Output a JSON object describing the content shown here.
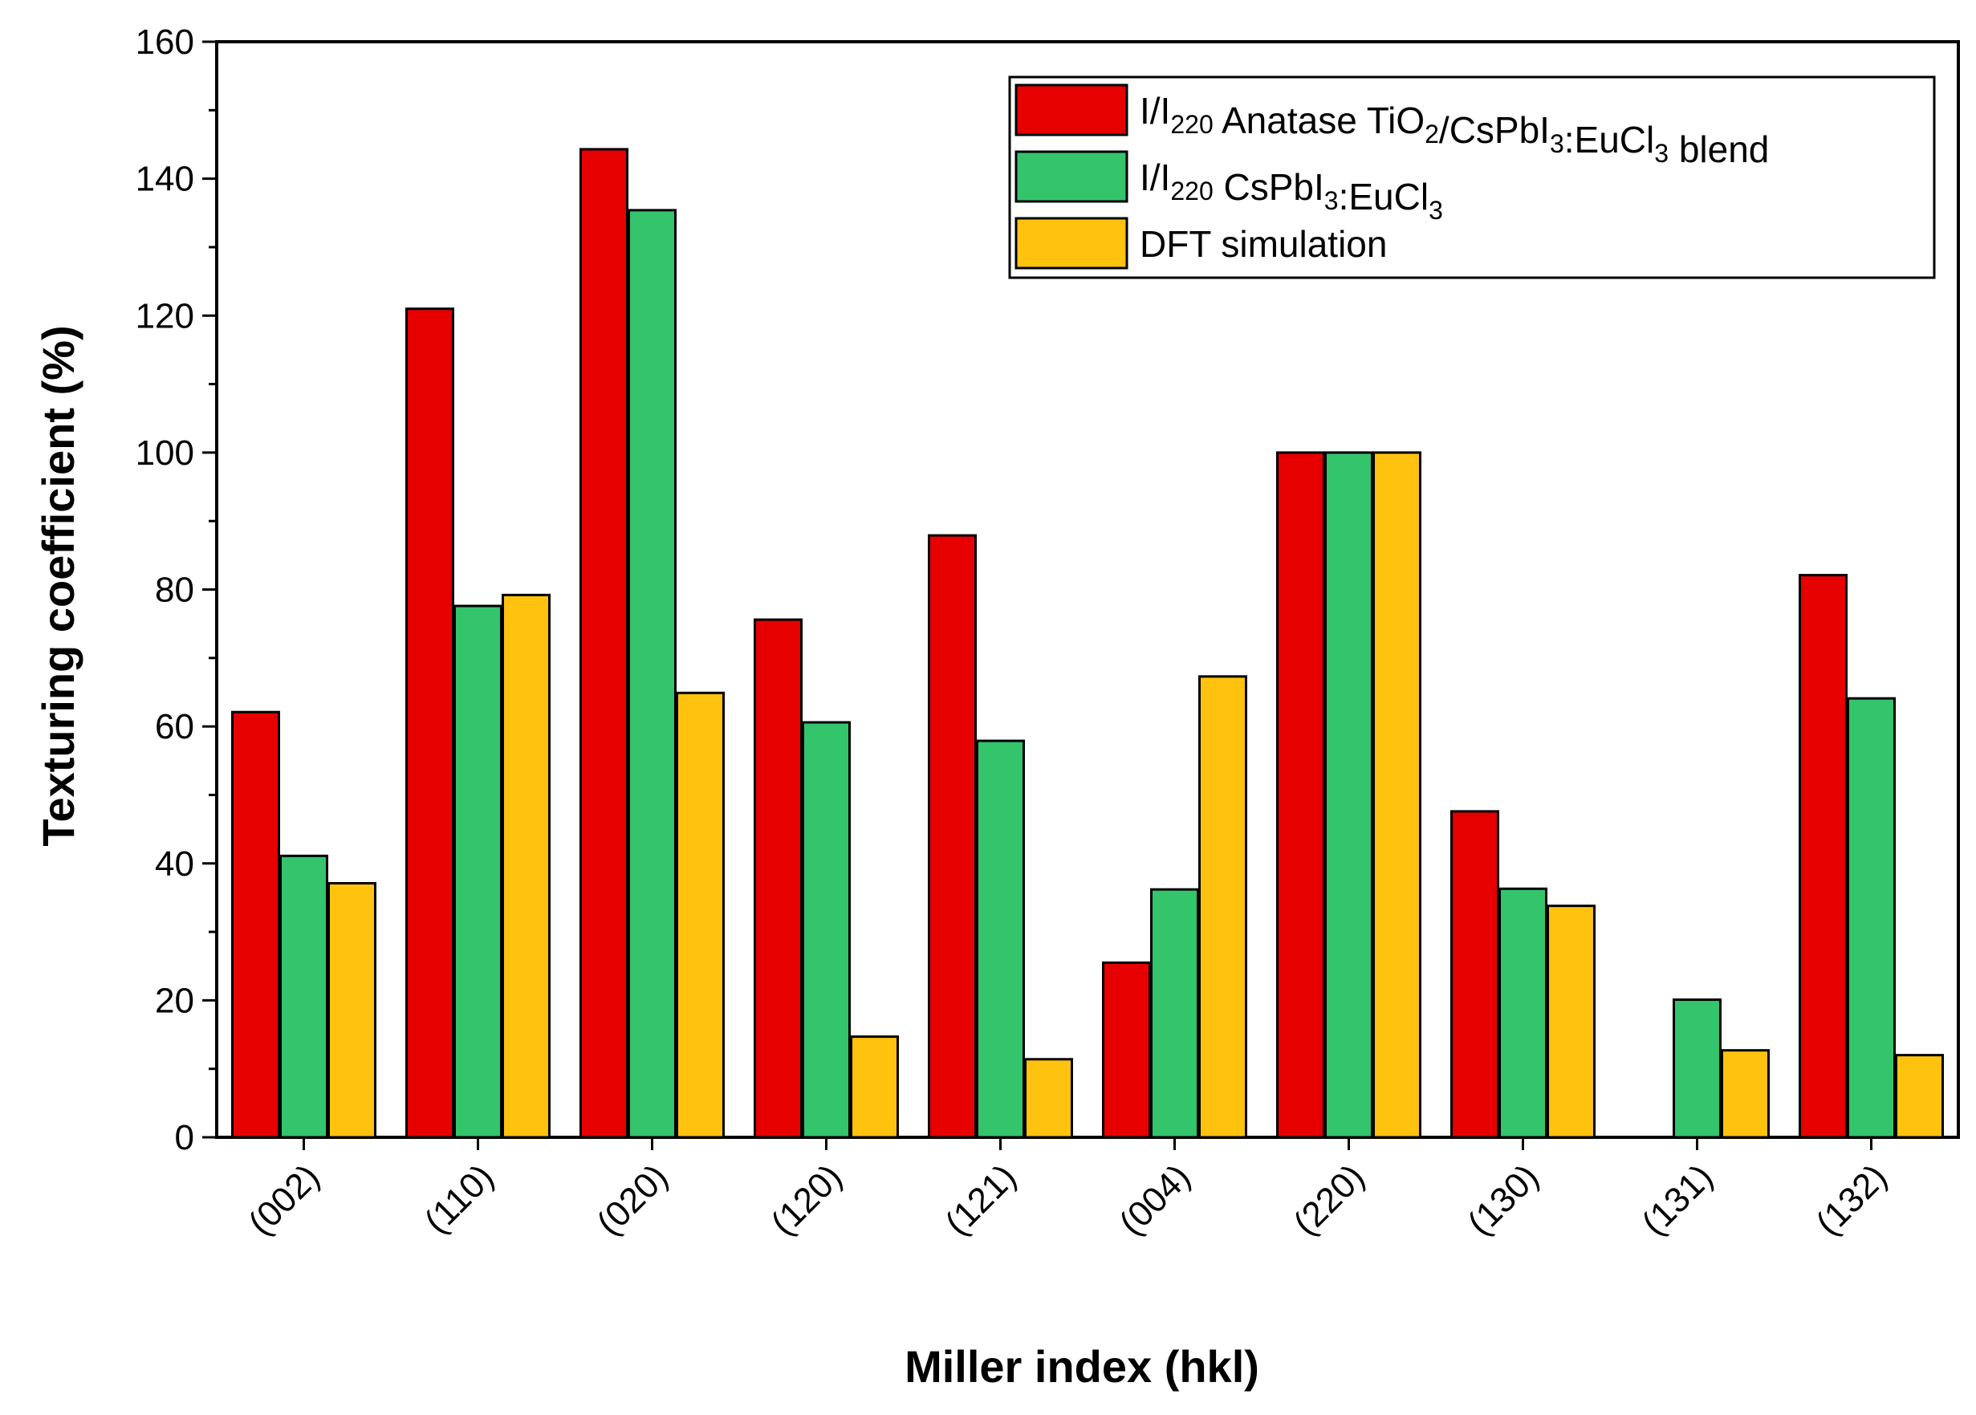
{
  "chart_data": {
    "type": "bar",
    "title": "",
    "xlabel": "Miller index (hkl)",
    "ylabel": "Texturing coefficient (%)",
    "ylim": [
      0,
      160
    ],
    "yticks": [
      0,
      20,
      40,
      60,
      80,
      100,
      120,
      140,
      160
    ],
    "categories": [
      "(002)",
      "(110)",
      "(020)",
      "(120)",
      "(121)",
      "(004)",
      "(220)",
      "(130)",
      "(131)",
      "(132)"
    ],
    "series": [
      {
        "name": "I/I220 Anatase TiO2/CsPbI3:EuCl3 blend",
        "color": "#e60000",
        "values": [
          62.1,
          121.0,
          144.3,
          75.6,
          87.9,
          25.5,
          100.0,
          47.6,
          0,
          82.1
        ]
      },
      {
        "name": "I/I220 CsPbI3:EuCl3",
        "color": "#33c46c",
        "values": [
          41.1,
          77.6,
          135.4,
          60.6,
          57.9,
          36.2,
          100.0,
          36.3,
          20.1,
          64.1
        ]
      },
      {
        "name": "DFT simulation",
        "color": "#ffc20e",
        "values": [
          37.1,
          79.2,
          64.9,
          14.7,
          11.4,
          67.3,
          100.0,
          33.8,
          12.7,
          12.0
        ]
      }
    ],
    "legend": {
      "position": "top-right",
      "entries": [
        {
          "parts": [
            [
              "I/I",
              ""
            ],
            [
              "220",
              "sub"
            ],
            [
              " Anatase TiO",
              ""
            ],
            [
              "2",
              "sub"
            ],
            [
              "/CsPbI",
              ""
            ],
            [
              "3",
              "sub"
            ],
            [
              ":EuCl",
              ""
            ],
            [
              "3",
              "sub"
            ],
            [
              " blend",
              ""
            ]
          ]
        },
        {
          "parts": [
            [
              "I/I",
              ""
            ],
            [
              "220",
              "sub"
            ],
            [
              " CsPbI",
              ""
            ],
            [
              "3",
              "sub"
            ],
            [
              ":EuCl",
              ""
            ],
            [
              "3",
              "sub"
            ]
          ]
        },
        {
          "parts": [
            [
              "DFT simulation",
              ""
            ]
          ]
        }
      ]
    }
  }
}
